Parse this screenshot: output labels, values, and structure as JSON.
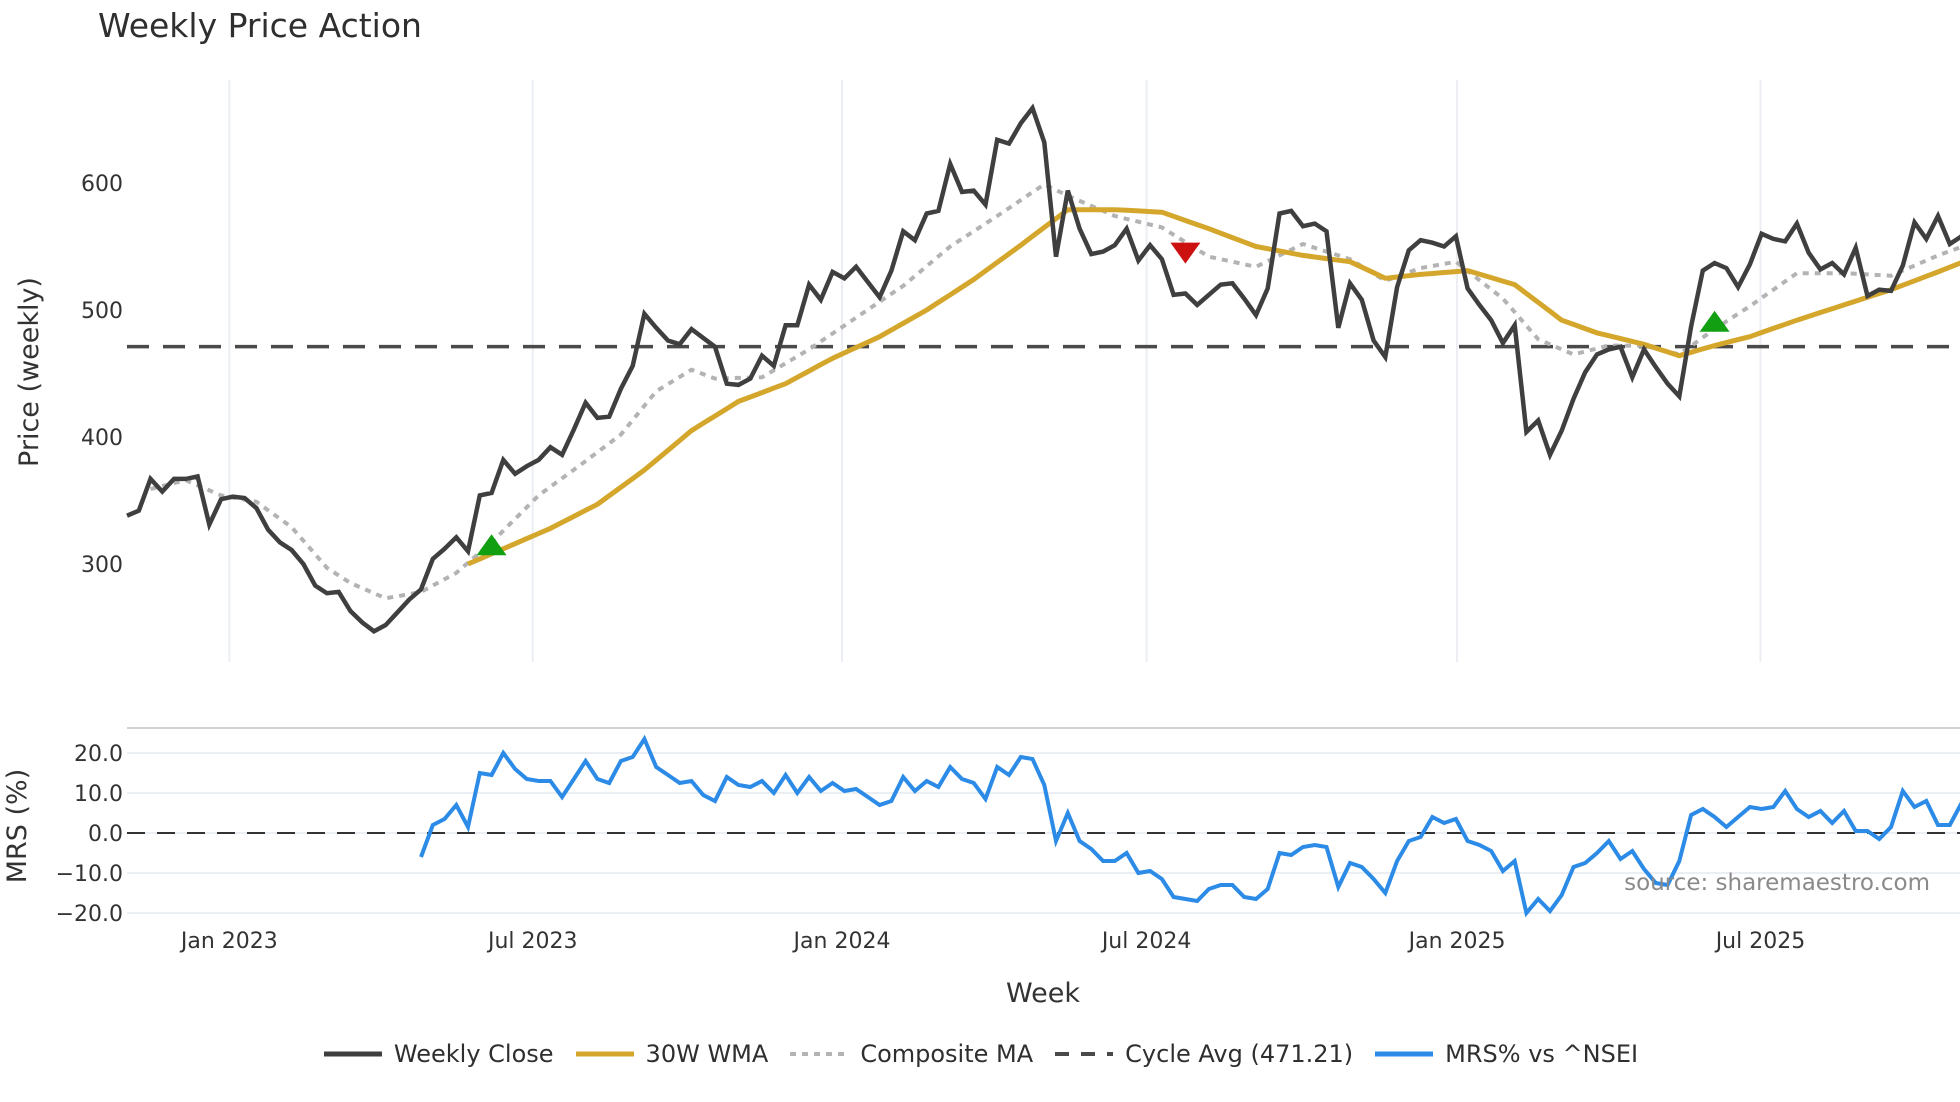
{
  "title": "Weekly Price Action",
  "colors": {
    "weekly_close": "#3f3f3f",
    "wma": "#d4a72c",
    "composite": "#b3b3b3",
    "cycle_avg": "#4a4a4a",
    "mrs": "#2b8be6",
    "buy_signal": "#12a012",
    "sell_signal": "#cc1111",
    "grid": "#ebeef2"
  },
  "legend": [
    {
      "key": "weekly_close",
      "label": "Weekly Close",
      "style": "solid"
    },
    {
      "key": "wma",
      "label": "30W WMA",
      "style": "solid"
    },
    {
      "key": "composite",
      "label": "Composite MA",
      "style": "dotted"
    },
    {
      "key": "cycle_avg",
      "label": "Cycle Avg (471.21)",
      "style": "dashed"
    },
    {
      "key": "mrs",
      "label": "MRS% vs ^NSEI",
      "style": "solid"
    }
  ],
  "source_text": "source: sharemaestro.com",
  "chart_data": [
    {
      "type": "line",
      "title": "Weekly Price Action",
      "xlabel": "Week",
      "ylabel": "Price (weekly)",
      "ylim": [
        222,
        680
      ],
      "yticks": [
        300,
        400,
        500,
        600
      ],
      "xticks": [
        {
          "label": "Jan 2023",
          "index": 8.7
        },
        {
          "label": "Jul 2023",
          "index": 34.5
        },
        {
          "label": "Jan 2024",
          "index": 60.8
        },
        {
          "label": "Jul 2024",
          "index": 86.7
        },
        {
          "label": "Jan 2025",
          "index": 113.1
        },
        {
          "label": "Jul 2025",
          "index": 138.9
        }
      ],
      "grid": true,
      "series": [
        {
          "name": "Weekly Close",
          "start_index": 0,
          "values": [
            338,
            342,
            367,
            357,
            367,
            367,
            369,
            331,
            351,
            353,
            352,
            344,
            327,
            317,
            311,
            300,
            283,
            277,
            278,
            263,
            254,
            247,
            252,
            262,
            272,
            280,
            304,
            312,
            321,
            310,
            354,
            356,
            382,
            371,
            377,
            382,
            392,
            386,
            406,
            427,
            415,
            416,
            438,
            456,
            497,
            486,
            476,
            473,
            485,
            478,
            471,
            442,
            441,
            446,
            464,
            456,
            488,
            488,
            520,
            508,
            530,
            525,
            534,
            522,
            510,
            531,
            562,
            555,
            576,
            578,
            615,
            593,
            594,
            583,
            634,
            631,
            647,
            659,
            632,
            542,
            594,
            564,
            544,
            546,
            551,
            564,
            539,
            551,
            540,
            512,
            513,
            504,
            512,
            520,
            521,
            509,
            496,
            517,
            576,
            578,
            566,
            568,
            562,
            486,
            521,
            508,
            476,
            463,
            518,
            547,
            555,
            553,
            550,
            558,
            517,
            504,
            492,
            474,
            488,
            404,
            413,
            386,
            405,
            430,
            451,
            465,
            469,
            471,
            447,
            469,
            455,
            442,
            432,
            487,
            531,
            537,
            533,
            518,
            536,
            560,
            556,
            554,
            568,
            545,
            532,
            537,
            528,
            549,
            511,
            516,
            515,
            535,
            569,
            556,
            574,
            552,
            558,
            591
          ]
        },
        {
          "name": "30W WMA",
          "keypoints": [
            [
              29,
              300
            ],
            [
              32,
              312
            ],
            [
              36,
              328
            ],
            [
              40,
              347
            ],
            [
              44,
              374
            ],
            [
              48,
              405
            ],
            [
              52,
              428
            ],
            [
              56,
              442
            ],
            [
              60,
              462
            ],
            [
              64,
              479
            ],
            [
              68,
              500
            ],
            [
              72,
              524
            ],
            [
              76,
              551
            ],
            [
              80,
              579
            ],
            [
              84,
              579
            ],
            [
              88,
              577
            ],
            [
              92,
              564
            ],
            [
              96,
              550
            ],
            [
              100,
              543
            ],
            [
              104,
              538
            ],
            [
              107,
              525
            ],
            [
              110,
              528
            ],
            [
              114,
              531
            ],
            [
              118,
              520
            ],
            [
              122,
              492
            ],
            [
              125,
              482
            ],
            [
              129,
              473
            ],
            [
              132,
              464
            ],
            [
              135,
              472
            ],
            [
              138,
              479
            ],
            [
              142,
              492
            ],
            [
              146,
              504
            ],
            [
              150,
              516
            ],
            [
              154,
              530
            ],
            [
              157,
              541
            ]
          ]
        },
        {
          "name": "Composite MA",
          "keypoints": [
            [
              2,
              359
            ],
            [
              5,
              366
            ],
            [
              8,
              354
            ],
            [
              11,
              349
            ],
            [
              14,
              329
            ],
            [
              17,
              297
            ],
            [
              19,
              285
            ],
            [
              22,
              273
            ],
            [
              25,
              278
            ],
            [
              28,
              293
            ],
            [
              31,
              317
            ],
            [
              35,
              354
            ],
            [
              39,
              381
            ],
            [
              42,
              402
            ],
            [
              45,
              436
            ],
            [
              48,
              453
            ],
            [
              50,
              446
            ],
            [
              54,
              447
            ],
            [
              58,
              469
            ],
            [
              62,
              494
            ],
            [
              66,
              519
            ],
            [
              70,
              550
            ],
            [
              74,
              574
            ],
            [
              78,
              599
            ],
            [
              80,
              590
            ],
            [
              84,
              574
            ],
            [
              88,
              565
            ],
            [
              92,
              542
            ],
            [
              96,
              534
            ],
            [
              100,
              552
            ],
            [
              104,
              540
            ],
            [
              107,
              523
            ],
            [
              110,
              533
            ],
            [
              113,
              538
            ],
            [
              117,
              509
            ],
            [
              120,
              477
            ],
            [
              123,
              465
            ],
            [
              126,
              472
            ],
            [
              129,
              472
            ],
            [
              132,
              465
            ],
            [
              135,
              485
            ],
            [
              138,
              503
            ],
            [
              142,
              529
            ],
            [
              146,
              529
            ],
            [
              150,
              527
            ],
            [
              154,
              543
            ],
            [
              157,
              553
            ]
          ]
        },
        {
          "name": "Cycle Avg (471.21)",
          "constant": 471.21
        }
      ],
      "signals": [
        {
          "type": "buy",
          "index": 31,
          "value": 314
        },
        {
          "type": "sell",
          "index": 90,
          "value": 546
        },
        {
          "type": "buy",
          "index": 135,
          "value": 490
        }
      ]
    },
    {
      "type": "line",
      "title": "",
      "xlabel": "Week",
      "ylabel": "MRS (%)",
      "ylim": [
        -21,
        25
      ],
      "yticks": [
        20.0,
        10.0,
        0.0,
        -10.0,
        -20.0
      ],
      "ytick_labels": [
        "20.0",
        "10.0",
        "0.0",
        "−10.0",
        "−20.0"
      ],
      "series": [
        {
          "name": "MRS% vs ^NSEI",
          "start_index": 25,
          "values": [
            -6,
            2,
            3.5,
            7,
            1.5,
            15,
            14.5,
            20,
            16,
            13.5,
            13,
            13,
            9,
            13.5,
            18,
            13.5,
            12.5,
            18,
            19,
            23.5,
            16.5,
            14.5,
            12.5,
            13,
            9.5,
            8,
            14,
            12,
            11.5,
            13,
            10,
            14.5,
            10,
            14,
            10.5,
            12.5,
            10.5,
            11,
            9,
            7,
            8,
            14,
            10.5,
            13,
            11.5,
            16.5,
            13.5,
            12.5,
            8.5,
            16.5,
            14.5,
            19,
            18.5,
            12,
            -2,
            5,
            -2,
            -4,
            -7,
            -7,
            -5,
            -10,
            -9.5,
            -11.5,
            -16,
            -16.5,
            -17,
            -14,
            -13,
            -13,
            -16,
            -16.5,
            -14,
            -5,
            -5.5,
            -3.5,
            -3,
            -3.5,
            -13.5,
            -7.5,
            -8.5,
            -11.5,
            -15,
            -7,
            -2,
            -1,
            4,
            2.5,
            3.5,
            -2,
            -3,
            -4.5,
            -9.5,
            -7,
            -20,
            -16.5,
            -19.5,
            -15.5,
            -8.5,
            -7.5,
            -5,
            -2,
            -6.5,
            -4.5,
            -9,
            -12.5,
            -13,
            -7,
            4.5,
            6,
            4,
            1.5,
            4,
            6.5,
            6,
            6.5,
            10.5,
            6,
            4,
            5.5,
            2.5,
            5.5,
            0.5,
            0.5,
            -1.5,
            1.5,
            10.5,
            6.5,
            8,
            2,
            2,
            7.5
          ]
        },
        {
          "name": "Zero line",
          "constant": 0
        }
      ]
    }
  ]
}
